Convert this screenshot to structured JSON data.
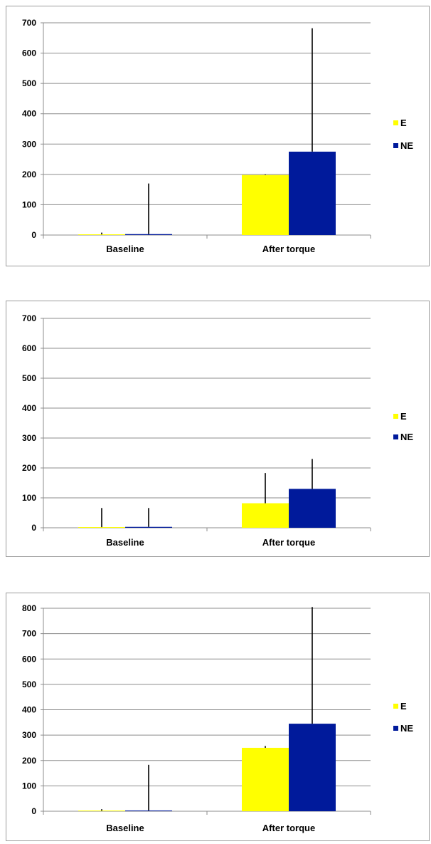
{
  "colors": {
    "E": "#ffff00",
    "NE": "#001a9b",
    "grid": "#8c8c8c",
    "axis": "#8c8c8c",
    "error_bar": "#000000"
  },
  "chart_data": [
    {
      "type": "bar",
      "categories": [
        "Baseline",
        "After torque"
      ],
      "series": [
        {
          "name": "E",
          "values": [
            2,
            198
          ],
          "error_upper": [
            8,
            200
          ]
        },
        {
          "name": "NE",
          "values": [
            3,
            275
          ],
          "error_upper": [
            170,
            682
          ]
        }
      ],
      "ylim": [
        0,
        700
      ],
      "yticks": [
        0,
        100,
        200,
        300,
        400,
        500,
        600,
        700
      ],
      "grid": true,
      "legend": "right"
    },
    {
      "type": "bar",
      "categories": [
        "Baseline",
        "After torque"
      ],
      "series": [
        {
          "name": "E",
          "values": [
            2,
            82
          ],
          "error_upper": [
            66,
            183
          ]
        },
        {
          "name": "NE",
          "values": [
            3,
            130
          ],
          "error_upper": [
            66,
            230
          ]
        }
      ],
      "ylim": [
        0,
        700
      ],
      "yticks": [
        0,
        100,
        200,
        300,
        400,
        500,
        600,
        700
      ],
      "grid": true,
      "legend": "right"
    },
    {
      "type": "bar",
      "categories": [
        "Baseline",
        "After torque"
      ],
      "series": [
        {
          "name": "E",
          "values": [
            2,
            250
          ],
          "error_upper": [
            8,
            257
          ]
        },
        {
          "name": "NE",
          "values": [
            3,
            345
          ],
          "error_upper": [
            183,
            805
          ]
        }
      ],
      "ylim": [
        0,
        800
      ],
      "yticks": [
        0,
        100,
        200,
        300,
        400,
        500,
        600,
        700,
        800
      ],
      "grid": true,
      "legend": "right"
    }
  ]
}
